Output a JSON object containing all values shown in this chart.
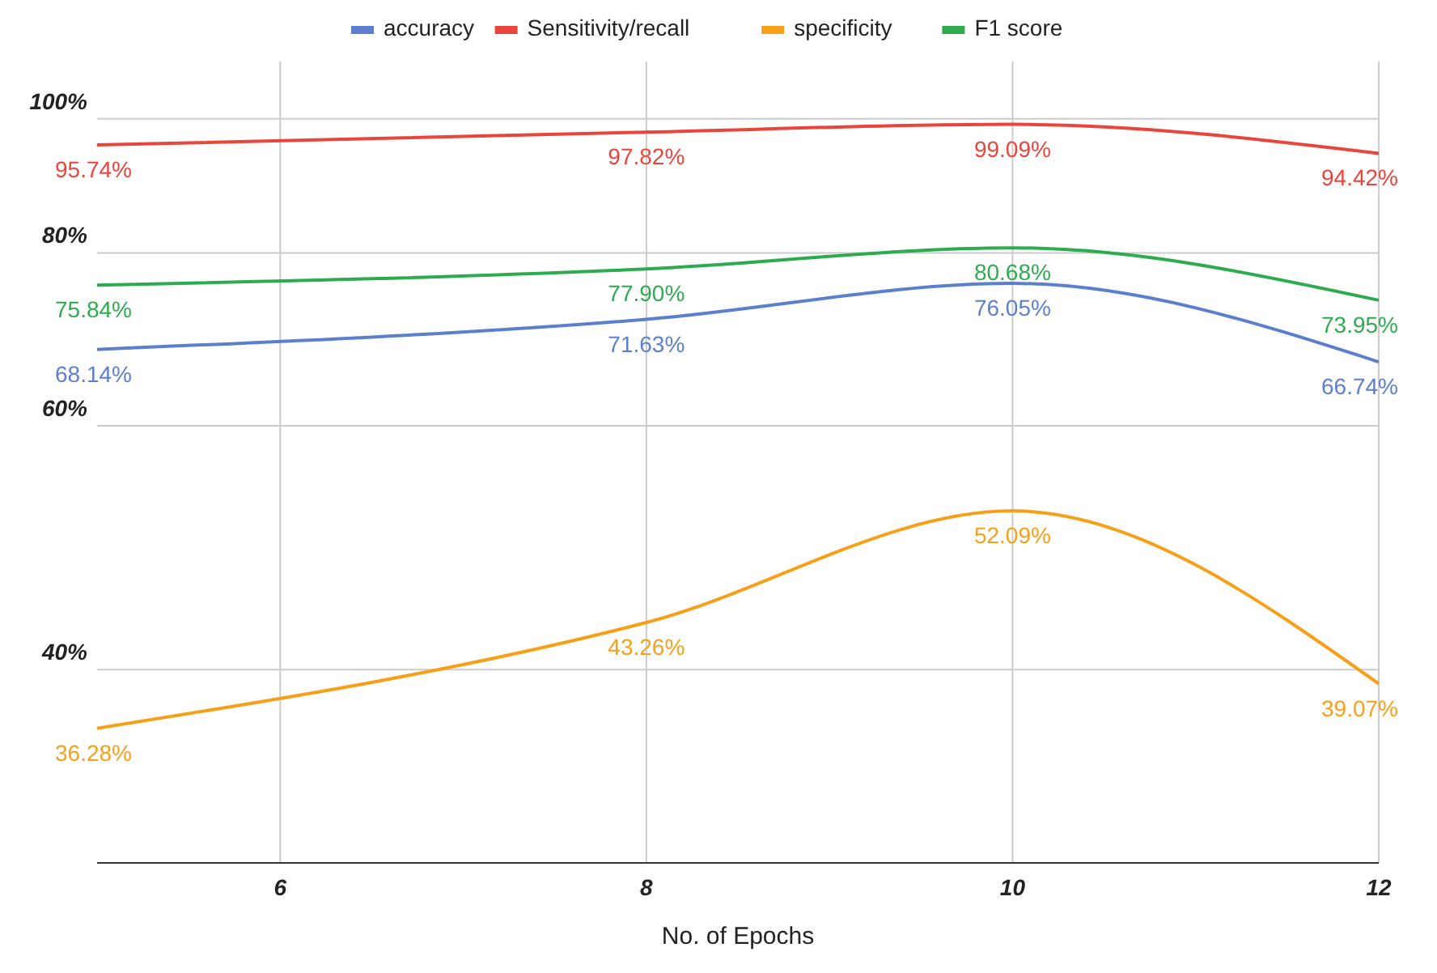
{
  "chart_data": {
    "type": "line",
    "xlabel": "No. of Epochs",
    "x": [
      5,
      8,
      10,
      12
    ],
    "xlim": [
      5,
      12
    ],
    "xticks": [
      6,
      8,
      10,
      12
    ],
    "ylim": [
      29,
      110
    ],
    "log": "y",
    "yticks": [
      {
        "value": 40,
        "label": "40%"
      },
      {
        "value": 60,
        "label": "60%"
      },
      {
        "value": 80,
        "label": "80%"
      },
      {
        "value": 100,
        "label": "100%"
      }
    ],
    "grid": true,
    "legend": "top",
    "marker": "none",
    "line_style": "solid",
    "series": [
      {
        "name": "accuracy",
        "color": "#5b7fcc",
        "values": [
          68.14,
          71.63,
          76.05,
          66.74
        ],
        "value_labels": [
          "68.14%",
          "71.63%",
          "76.05%",
          "66.74%"
        ]
      },
      {
        "name": "Sensitivity/recall",
        "color": "#e8453c",
        "values": [
          95.74,
          97.82,
          99.09,
          94.42
        ],
        "value_labels": [
          "95.74%",
          "97.82%",
          "99.09%",
          "94.42%"
        ]
      },
      {
        "name": "specificity",
        "color": "#f6a01a",
        "values": [
          36.28,
          43.26,
          52.09,
          39.07
        ],
        "value_labels": [
          "36.28%",
          "43.26%",
          "52.09%",
          "39.07%"
        ]
      },
      {
        "name": "F1 score",
        "color": "#2eab4f",
        "values": [
          75.84,
          77.9,
          80.68,
          73.95
        ],
        "value_labels": [
          "75.84%",
          "77.90%",
          "80.68%",
          "73.95%"
        ]
      }
    ]
  }
}
